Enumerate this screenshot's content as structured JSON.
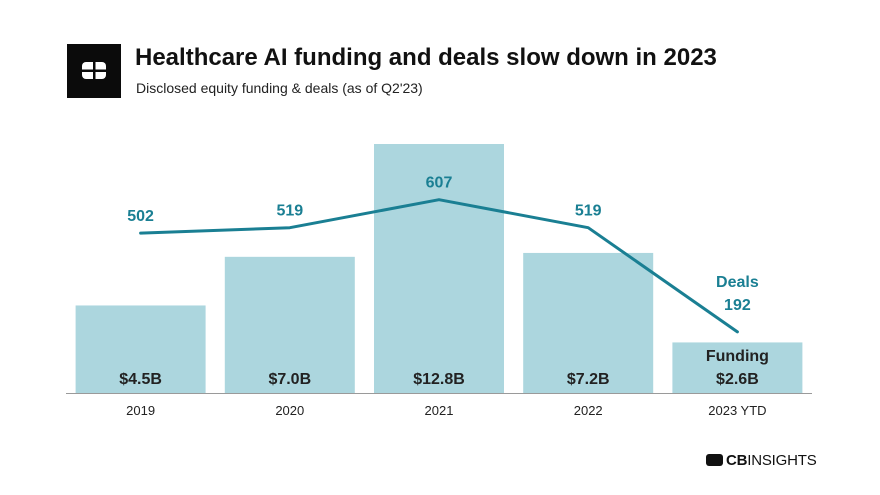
{
  "header": {
    "title": "Healthcare AI funding and deals slow down in 2023",
    "subtitle": "Disclosed equity funding & deals (as of Q2'23)"
  },
  "brand": {
    "bold": "CB",
    "light": "INSIGHTS",
    "icon": "cb-insights-logo-icon"
  },
  "colors": {
    "bar": "#acd6de",
    "line": "#1a7f93",
    "text": "#222222",
    "axis": "#9a9a9a"
  },
  "chart_data": {
    "type": "bar",
    "title": "Healthcare AI funding and deals slow down in 2023",
    "subtitle": "Disclosed equity funding & deals (as of Q2'23)",
    "categories": [
      "2019",
      "2020",
      "2021",
      "2022",
      "2023 YTD"
    ],
    "series": [
      {
        "name": "Funding",
        "type": "bar",
        "unit": "$B",
        "values": [
          4.5,
          7.0,
          12.8,
          7.2,
          2.6
        ],
        "labels": [
          "$4.5B",
          "$7.0B",
          "$12.8B",
          "$7.2B",
          "$2.6B"
        ]
      },
      {
        "name": "Deals",
        "type": "line",
        "values": [
          502,
          519,
          607,
          519,
          192
        ],
        "labels": [
          "502",
          "519",
          "607",
          "519",
          "192"
        ]
      }
    ],
    "legend_labels": {
      "bar": "Funding",
      "line": "Deals"
    },
    "xlabel": "",
    "ylabel": "",
    "bar_ylim": [
      0,
      14
    ],
    "line_ylim": [
      0,
      700
    ],
    "grid": false
  }
}
